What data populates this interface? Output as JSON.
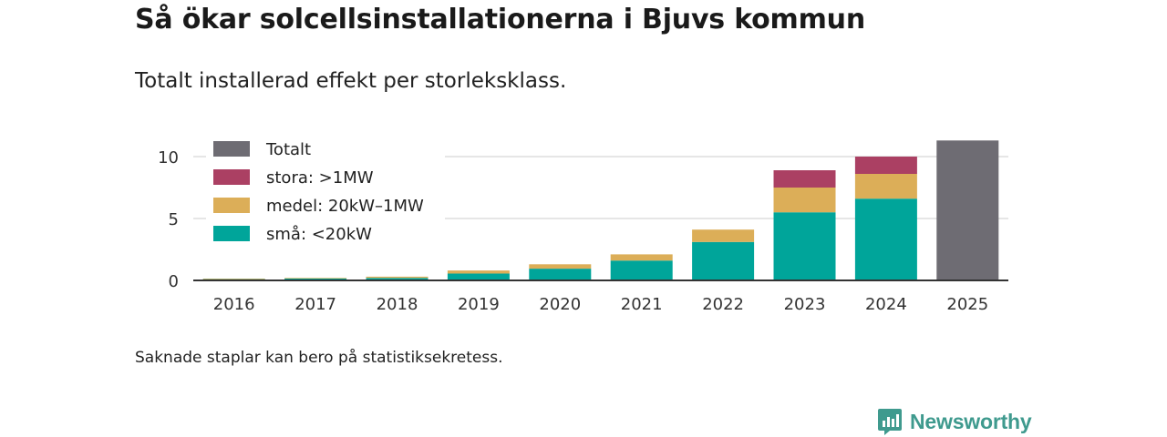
{
  "header": {
    "title": "Så ökar solcellsinstallationerna i Bjuvs kommun",
    "subtitle": "Totalt installerad effekt per storleksklass."
  },
  "footer": {
    "note": "Saknade staplar kan bero på statistiksekretess.",
    "brand": "Newsworthy"
  },
  "colors": {
    "small": "#00a59a",
    "medium": "#dcae58",
    "large": "#ab4063",
    "total": "#6e6c73",
    "axis": "#333333",
    "grid": "#dddddd",
    "brand": "#3f9a8e"
  },
  "chart_data": {
    "type": "bar",
    "stacked": true,
    "title": "Så ökar solcellsinstallationerna i Bjuvs kommun",
    "subtitle": "Totalt installerad effekt per storleksklass.",
    "xlabel": "",
    "ylabel": "",
    "ylim": [
      0,
      12
    ],
    "yticks": [
      0,
      5,
      10
    ],
    "grid": true,
    "legend_position": "top-left",
    "categories": [
      "2016",
      "2017",
      "2018",
      "2019",
      "2020",
      "2021",
      "2022",
      "2023",
      "2024",
      "2025"
    ],
    "series": [
      {
        "name": "små: <20kW",
        "key": "small",
        "values": [
          0.1,
          0.15,
          0.2,
          0.55,
          0.95,
          1.6,
          3.1,
          5.5,
          6.6,
          null
        ]
      },
      {
        "name": "medel: 20kW–1MW",
        "key": "medium",
        "values": [
          0.05,
          0.05,
          0.1,
          0.25,
          0.35,
          0.5,
          1.0,
          2.0,
          2.0,
          null
        ]
      },
      {
        "name": "stora: >1MW",
        "key": "large",
        "values": [
          null,
          null,
          null,
          null,
          null,
          null,
          null,
          1.4,
          1.4,
          null
        ]
      },
      {
        "name": "Totalt",
        "key": "total",
        "values": [
          null,
          null,
          null,
          null,
          null,
          null,
          null,
          null,
          null,
          11.3
        ]
      }
    ],
    "legend_order": [
      "total",
      "large",
      "medium",
      "small"
    ]
  }
}
